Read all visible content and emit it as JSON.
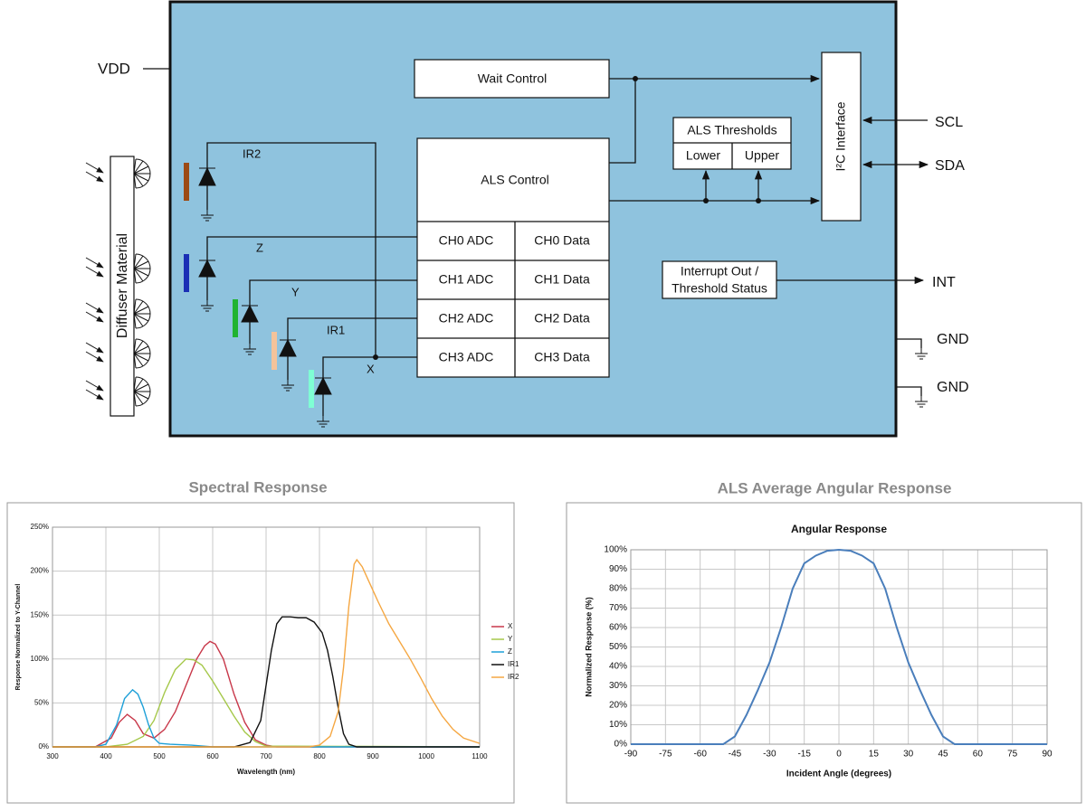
{
  "diagram": {
    "vdd": "VDD",
    "wait_control": "Wait Control",
    "als_thresholds": {
      "title": "ALS Thresholds",
      "lower": "Lower",
      "upper": "Upper"
    },
    "als_control": "ALS Control",
    "adc": [
      "CH0 ADC",
      "CH1 ADC",
      "CH2 ADC",
      "CH3 ADC"
    ],
    "data": [
      "CH0 Data",
      "CH1 Data",
      "CH2 Data",
      "CH3 Data"
    ],
    "interrupt": {
      "lines": [
        "Interrupt Out /",
        "Threshold Status"
      ]
    },
    "i2c": "I²C Interface",
    "pins": {
      "scl": "SCL",
      "sda": "SDA",
      "int": "INT",
      "gnd": [
        "GND",
        "GND"
      ]
    },
    "diffuser": "Diffuser Material",
    "channels": {
      "ir2": "IR2",
      "z": "Z",
      "y": "Y",
      "ir1": "IR1",
      "x": "X"
    }
  },
  "chart_data": [
    {
      "type": "line",
      "heading": "Spectral Response",
      "xlabel": "Wavelength (nm)",
      "ylabel": "Response Normalized to Y-Channel",
      "xlim": [
        300,
        1100
      ],
      "xticks": [
        300,
        400,
        500,
        600,
        700,
        800,
        900,
        1000,
        1100
      ],
      "ylim": [
        0,
        250
      ],
      "yticks": [
        {
          "value": 0,
          "label": "0%"
        },
        {
          "value": 50,
          "label": "50%"
        },
        {
          "value": 100,
          "label": "100%"
        },
        {
          "value": 150,
          "label": "150%"
        },
        {
          "value": 200,
          "label": "200%"
        },
        {
          "value": 250,
          "label": "250%"
        }
      ],
      "grid": true,
      "legend": "right",
      "series": [
        {
          "name": "X",
          "color": "#c8384a",
          "x": [
            300,
            380,
            410,
            425,
            440,
            455,
            470,
            490,
            510,
            530,
            550,
            570,
            585,
            595,
            605,
            620,
            640,
            660,
            680,
            700,
            720,
            1100
          ],
          "values": [
            0,
            0,
            10,
            28,
            37,
            30,
            15,
            10,
            20,
            40,
            70,
            100,
            115,
            120,
            117,
            100,
            60,
            28,
            8,
            2,
            0,
            0
          ]
        },
        {
          "name": "Y",
          "color": "#a5c84a",
          "x": [
            300,
            400,
            440,
            470,
            490,
            510,
            530,
            550,
            565,
            580,
            600,
            620,
            640,
            660,
            680,
            700,
            1100
          ],
          "values": [
            0,
            0,
            3,
            12,
            30,
            62,
            88,
            100,
            99,
            93,
            75,
            55,
            35,
            17,
            6,
            1,
            0
          ]
        },
        {
          "name": "Z",
          "color": "#1ea0d8",
          "x": [
            300,
            380,
            400,
            420,
            435,
            450,
            460,
            470,
            480,
            490,
            500,
            520,
            560,
            600,
            1100
          ],
          "values": [
            0,
            0,
            3,
            25,
            55,
            65,
            60,
            45,
            25,
            10,
            4,
            3,
            2,
            0,
            0
          ]
        },
        {
          "name": "IR1",
          "color": "#111111",
          "x": [
            300,
            640,
            670,
            690,
            700,
            710,
            720,
            730,
            745,
            760,
            775,
            790,
            805,
            815,
            825,
            835,
            845,
            855,
            870,
            900,
            1100
          ],
          "values": [
            0,
            0,
            5,
            30,
            70,
            110,
            140,
            148,
            148,
            147,
            147,
            142,
            130,
            110,
            80,
            45,
            15,
            3,
            0,
            0,
            0
          ]
        },
        {
          "name": "IR2",
          "color": "#f5a742",
          "x": [
            300,
            780,
            800,
            820,
            835,
            845,
            855,
            865,
            870,
            880,
            895,
            910,
            930,
            950,
            970,
            990,
            1010,
            1030,
            1050,
            1070,
            1100
          ],
          "values": [
            0,
            0,
            2,
            12,
            40,
            90,
            160,
            208,
            213,
            205,
            185,
            165,
            140,
            120,
            100,
            78,
            55,
            35,
            20,
            10,
            4
          ]
        }
      ]
    },
    {
      "type": "line",
      "heading": "ALS Average Angular Response",
      "title": "Angular Response",
      "xlabel": "Incident Angle (degrees)",
      "ylabel": "Normalized Response (%)",
      "xlim": [
        -90,
        90
      ],
      "xticks": [
        -90,
        -75,
        -60,
        -45,
        -30,
        -15,
        0,
        15,
        30,
        45,
        60,
        75,
        90
      ],
      "ylim": [
        0,
        100
      ],
      "yticks": [
        {
          "value": 0,
          "label": "0%"
        },
        {
          "value": 10,
          "label": "10%"
        },
        {
          "value": 20,
          "label": "20%"
        },
        {
          "value": 30,
          "label": "30%"
        },
        {
          "value": 40,
          "label": "40%"
        },
        {
          "value": 50,
          "label": "50%"
        },
        {
          "value": 60,
          "label": "60%"
        },
        {
          "value": 70,
          "label": "70%"
        },
        {
          "value": 80,
          "label": "80%"
        },
        {
          "value": 90,
          "label": "90%"
        },
        {
          "value": 100,
          "label": "100%"
        }
      ],
      "grid": true,
      "color": "#4a7ebb",
      "x": [
        -90,
        -50,
        -45,
        -40,
        -35,
        -30,
        -25,
        -20,
        -15,
        -10,
        -5,
        0,
        5,
        10,
        15,
        20,
        25,
        30,
        35,
        40,
        45,
        50,
        90
      ],
      "values": [
        0,
        0,
        4,
        15,
        28,
        42,
        60,
        80,
        93,
        97,
        99.5,
        100,
        99.5,
        97,
        93,
        80,
        60,
        42,
        28,
        15,
        4,
        0,
        0
      ]
    }
  ]
}
